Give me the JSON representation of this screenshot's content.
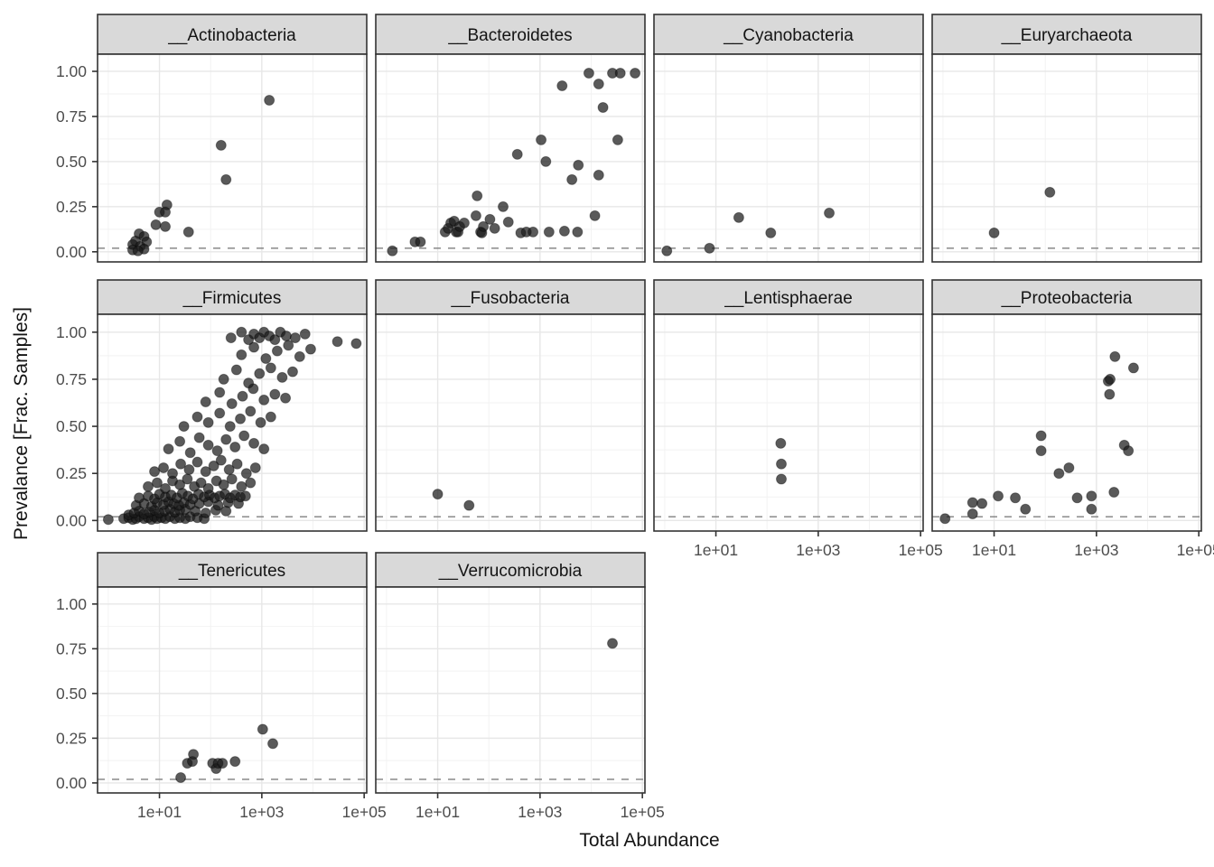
{
  "figure": {
    "x_axis_title": "Total Abundance",
    "y_axis_title": "Prevalance [Frac. Samples]"
  },
  "chart_data": {
    "type": "scatter",
    "faceted": true,
    "facet_variable": "Phylum",
    "xlabel": "Total Abundance",
    "ylabel": "Prevalance [Frac. Samples]",
    "x_scale": "log10",
    "x_tick_labels": [
      "1e+01",
      "1e+03",
      "1e+05"
    ],
    "x_tick_values": [
      10,
      1000,
      100000
    ],
    "y_tick_labels": [
      "0.00",
      "0.25",
      "0.50",
      "0.75",
      "1.00"
    ],
    "y_tick_values": [
      0,
      0.25,
      0.5,
      0.75,
      1
    ],
    "xlim_log10": [
      -0.21,
      5.05
    ],
    "ylim": [
      -0.056,
      1.095
    ],
    "grid": "major+minor",
    "legend": "none",
    "threshold_line": {
      "y": 0.02,
      "style": "dashed",
      "color": "#7f7f7f"
    },
    "style": {
      "point_color": "#1a1a1a",
      "point_opacity": 0.72,
      "point_radius": 5.5,
      "strip_background": "#d9d9d9",
      "strip_text_color": "#141414",
      "panel_background": "#ffffff",
      "panel_border": "#333333",
      "grid_major_color": "#e7e7e7",
      "grid_minor_color": "#f2f2f2",
      "tick_label_color": "#4d4d4d",
      "tick_mark_color": "#333333"
    },
    "facets": [
      {
        "label": "__Actinobacteria",
        "grid": [
          0,
          0
        ],
        "points": [
          [
            1400,
            0.84
          ],
          [
            160,
            0.59
          ],
          [
            200,
            0.4
          ],
          [
            14,
            0.26
          ],
          [
            10,
            0.22
          ],
          [
            13,
            0.22
          ],
          [
            8.5,
            0.15
          ],
          [
            13,
            0.14
          ],
          [
            37,
            0.11
          ],
          [
            4,
            0.1
          ],
          [
            5,
            0.085
          ],
          [
            3.4,
            0.06
          ],
          [
            5.6,
            0.055
          ],
          [
            3,
            0.04
          ],
          [
            4.2,
            0.03
          ],
          [
            5,
            0.015
          ],
          [
            3,
            0.01
          ],
          [
            3.8,
            0.005
          ]
        ]
      },
      {
        "label": "__Bacteroidetes",
        "grid": [
          0,
          1
        ],
        "points": [
          [
            1.3,
            0.005
          ],
          [
            3.6,
            0.055
          ],
          [
            4.6,
            0.055
          ],
          [
            14,
            0.11
          ],
          [
            16,
            0.13
          ],
          [
            18,
            0.16
          ],
          [
            21,
            0.17
          ],
          [
            23,
            0.11
          ],
          [
            25,
            0.11
          ],
          [
            27,
            0.14
          ],
          [
            33,
            0.16
          ],
          [
            56,
            0.2
          ],
          [
            59,
            0.31
          ],
          [
            69,
            0.11
          ],
          [
            73,
            0.105
          ],
          [
            78,
            0.14
          ],
          [
            105,
            0.18
          ],
          [
            130,
            0.13
          ],
          [
            190,
            0.25
          ],
          [
            240,
            0.165
          ],
          [
            360,
            0.54
          ],
          [
            420,
            0.105
          ],
          [
            540,
            0.11
          ],
          [
            730,
            0.11
          ],
          [
            1050,
            0.62
          ],
          [
            1300,
            0.5
          ],
          [
            1500,
            0.11
          ],
          [
            2700,
            0.92
          ],
          [
            3000,
            0.115
          ],
          [
            4200,
            0.4
          ],
          [
            5400,
            0.11
          ],
          [
            5600,
            0.48
          ],
          [
            9000,
            0.99
          ],
          [
            11800,
            0.2
          ],
          [
            14000,
            0.93
          ],
          [
            14000,
            0.425
          ],
          [
            17000,
            0.8
          ],
          [
            26000,
            0.99
          ],
          [
            33000,
            0.62
          ],
          [
            37000,
            0.99
          ],
          [
            72000,
            0.99
          ]
        ]
      },
      {
        "label": "__Cyanobacteria",
        "grid": [
          0,
          2
        ],
        "points": [
          [
            1.1,
            0.005
          ],
          [
            7.5,
            0.02
          ],
          [
            28,
            0.19
          ],
          [
            118,
            0.105
          ],
          [
            1640,
            0.215
          ]
        ]
      },
      {
        "label": "__Euryarchaeota",
        "grid": [
          0,
          3
        ],
        "points": [
          [
            10,
            0.105
          ],
          [
            123,
            0.33
          ]
        ]
      },
      {
        "label": "__Firmicutes",
        "grid": [
          1,
          0
        ],
        "points": [
          [
            1,
            0.005
          ],
          [
            2,
            0.01
          ],
          [
            2.5,
            0.015
          ],
          [
            3,
            0.005
          ],
          [
            3.5,
            0.01
          ],
          [
            4,
            0.02
          ],
          [
            5,
            0.01
          ],
          [
            6,
            0.015
          ],
          [
            7,
            0.005
          ],
          [
            8,
            0.02
          ],
          [
            9,
            0.01
          ],
          [
            11,
            0.015
          ],
          [
            13,
            0.01
          ],
          [
            16,
            0.02
          ],
          [
            20,
            0.01
          ],
          [
            25,
            0.015
          ],
          [
            32,
            0.01
          ],
          [
            40,
            0.02
          ],
          [
            55,
            0.015
          ],
          [
            75,
            0.01
          ],
          [
            2.5,
            0.03
          ],
          [
            3.2,
            0.04
          ],
          [
            4,
            0.05
          ],
          [
            5,
            0.035
          ],
          [
            6.3,
            0.045
          ],
          [
            8,
            0.055
          ],
          [
            10,
            0.04
          ],
          [
            12.6,
            0.05
          ],
          [
            16,
            0.06
          ],
          [
            20,
            0.045
          ],
          [
            25,
            0.055
          ],
          [
            32,
            0.06
          ],
          [
            50,
            0.05
          ],
          [
            80,
            0.04
          ],
          [
            126,
            0.055
          ],
          [
            200,
            0.05
          ],
          [
            3.5,
            0.08
          ],
          [
            5,
            0.09
          ],
          [
            7,
            0.075
          ],
          [
            9,
            0.095
          ],
          [
            12,
            0.085
          ],
          [
            15,
            0.1
          ],
          [
            19,
            0.09
          ],
          [
            24,
            0.08
          ],
          [
            30,
            0.095
          ],
          [
            40,
            0.085
          ],
          [
            60,
            0.09
          ],
          [
            90,
            0.1
          ],
          [
            140,
            0.08
          ],
          [
            220,
            0.095
          ],
          [
            350,
            0.09
          ],
          [
            4,
            0.12
          ],
          [
            6,
            0.13
          ],
          [
            8,
            0.115
          ],
          [
            10,
            0.14
          ],
          [
            13,
            0.125
          ],
          [
            17,
            0.135
          ],
          [
            22,
            0.12
          ],
          [
            28,
            0.145
          ],
          [
            36,
            0.13
          ],
          [
            45,
            0.115
          ],
          [
            58,
            0.14
          ],
          [
            75,
            0.125
          ],
          [
            95,
            0.135
          ],
          [
            120,
            0.12
          ],
          [
            150,
            0.13
          ],
          [
            190,
            0.14
          ],
          [
            240,
            0.12
          ],
          [
            300,
            0.135
          ],
          [
            380,
            0.125
          ],
          [
            480,
            0.13
          ],
          [
            6,
            0.18
          ],
          [
            9,
            0.2
          ],
          [
            13,
            0.17
          ],
          [
            18,
            0.21
          ],
          [
            25,
            0.19
          ],
          [
            35,
            0.22
          ],
          [
            48,
            0.18
          ],
          [
            65,
            0.2
          ],
          [
            90,
            0.17
          ],
          [
            130,
            0.21
          ],
          [
            180,
            0.19
          ],
          [
            260,
            0.22
          ],
          [
            400,
            0.18
          ],
          [
            600,
            0.2
          ],
          [
            8,
            0.26
          ],
          [
            12,
            0.28
          ],
          [
            18,
            0.25
          ],
          [
            26,
            0.3
          ],
          [
            38,
            0.27
          ],
          [
            55,
            0.31
          ],
          [
            80,
            0.26
          ],
          [
            115,
            0.29
          ],
          [
            160,
            0.32
          ],
          [
            230,
            0.27
          ],
          [
            330,
            0.3
          ],
          [
            500,
            0.25
          ],
          [
            750,
            0.28
          ],
          [
            15,
            0.38
          ],
          [
            25,
            0.42
          ],
          [
            40,
            0.36
          ],
          [
            60,
            0.44
          ],
          [
            90,
            0.4
          ],
          [
            135,
            0.37
          ],
          [
            200,
            0.43
          ],
          [
            300,
            0.39
          ],
          [
            450,
            0.45
          ],
          [
            700,
            0.41
          ],
          [
            1100,
            0.38
          ],
          [
            30,
            0.5
          ],
          [
            55,
            0.55
          ],
          [
            90,
            0.52
          ],
          [
            150,
            0.57
          ],
          [
            240,
            0.5
          ],
          [
            380,
            0.54
          ],
          [
            600,
            0.58
          ],
          [
            950,
            0.52
          ],
          [
            1500,
            0.55
          ],
          [
            80,
            0.63
          ],
          [
            150,
            0.68
          ],
          [
            260,
            0.62
          ],
          [
            420,
            0.66
          ],
          [
            680,
            0.7
          ],
          [
            1100,
            0.64
          ],
          [
            1800,
            0.67
          ],
          [
            2900,
            0.65
          ],
          [
            180,
            0.75
          ],
          [
            320,
            0.8
          ],
          [
            550,
            0.73
          ],
          [
            900,
            0.78
          ],
          [
            1500,
            0.81
          ],
          [
            2500,
            0.76
          ],
          [
            4000,
            0.79
          ],
          [
            400,
            0.88
          ],
          [
            700,
            0.92
          ],
          [
            1200,
            0.86
          ],
          [
            2000,
            0.9
          ],
          [
            3300,
            0.93
          ],
          [
            5500,
            0.87
          ],
          [
            9000,
            0.91
          ],
          [
            250,
            0.97
          ],
          [
            400,
            1.0
          ],
          [
            550,
            0.96
          ],
          [
            700,
            0.99
          ],
          [
            900,
            0.97
          ],
          [
            1100,
            1.0
          ],
          [
            1400,
            0.98
          ],
          [
            1800,
            0.96
          ],
          [
            2300,
            1.0
          ],
          [
            3000,
            0.98
          ],
          [
            4500,
            0.97
          ],
          [
            7000,
            0.99
          ],
          [
            30000,
            0.95
          ],
          [
            70000,
            0.94
          ]
        ]
      },
      {
        "label": "__Fusobacteria",
        "grid": [
          1,
          1
        ],
        "points": [
          [
            10,
            0.14
          ],
          [
            41,
            0.08
          ]
        ]
      },
      {
        "label": "__Lentisphaerae",
        "grid": [
          1,
          2
        ],
        "points": [
          [
            185,
            0.41
          ],
          [
            190,
            0.3
          ],
          [
            190,
            0.22
          ]
        ]
      },
      {
        "label": "__Proteobacteria",
        "grid": [
          1,
          3
        ],
        "points": [
          [
            2300,
            0.87
          ],
          [
            5300,
            0.81
          ],
          [
            1700,
            0.74
          ],
          [
            1850,
            0.75
          ],
          [
            1800,
            0.67
          ],
          [
            83,
            0.45
          ],
          [
            83,
            0.37
          ],
          [
            185,
            0.25
          ],
          [
            290,
            0.28
          ],
          [
            3500,
            0.4
          ],
          [
            4200,
            0.37
          ],
          [
            2200,
            0.15
          ],
          [
            420,
            0.12
          ],
          [
            800,
            0.13
          ],
          [
            800,
            0.06
          ],
          [
            12,
            0.13
          ],
          [
            26,
            0.12
          ],
          [
            41,
            0.06
          ],
          [
            3.8,
            0.095
          ],
          [
            5.8,
            0.09
          ],
          [
            3.8,
            0.035
          ],
          [
            1.1,
            0.01
          ]
        ]
      },
      {
        "label": "__Tenericutes",
        "grid": [
          2,
          0
        ],
        "points": [
          [
            26,
            0.03
          ],
          [
            35,
            0.11
          ],
          [
            44,
            0.12
          ],
          [
            46,
            0.16
          ],
          [
            109,
            0.11
          ],
          [
            128,
            0.08
          ],
          [
            140,
            0.11
          ],
          [
            170,
            0.11
          ],
          [
            300,
            0.12
          ],
          [
            1040,
            0.3
          ],
          [
            1640,
            0.22
          ]
        ]
      },
      {
        "label": "__Verrucomicrobia",
        "grid": [
          2,
          1
        ],
        "points": [
          [
            26000,
            0.78
          ]
        ]
      }
    ]
  }
}
